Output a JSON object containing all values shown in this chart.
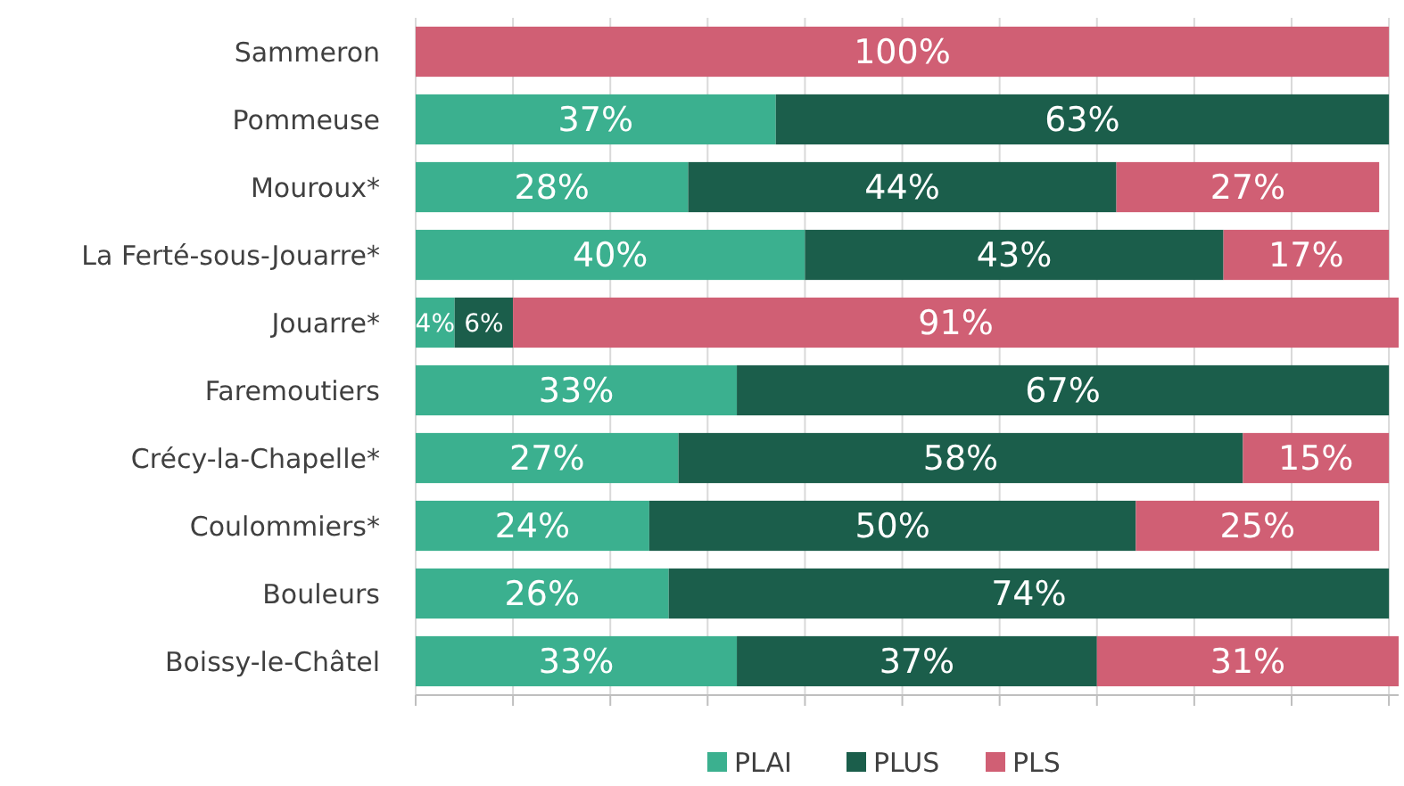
{
  "chart_data": {
    "type": "bar",
    "orientation": "horizontal",
    "stacked": true,
    "categories": [
      "Sammeron",
      "Pommeuse",
      "Mouroux*",
      "La Ferté-sous-Jouarre*",
      "Jouarre*",
      "Faremoutiers",
      "Crécy-la-Chapelle*",
      "Coulommiers*",
      "Bouleurs",
      "Boissy-le-Châtel"
    ],
    "series": [
      {
        "name": "PLAI",
        "color": "#3bb08f",
        "values": [
          null,
          37,
          28,
          40,
          4,
          33,
          27,
          24,
          26,
          33
        ],
        "value_labels": [
          null,
          "37%",
          "28%",
          "40%",
          "4%",
          "33%",
          "27%",
          "24%",
          "26%",
          "33%"
        ]
      },
      {
        "name": "PLUS",
        "color": "#1b5e4b",
        "values": [
          null,
          63,
          44,
          43,
          6,
          67,
          58,
          50,
          74,
          37
        ],
        "value_labels": [
          null,
          "63%",
          "44%",
          "43%",
          "6%",
          "67%",
          "58%",
          "50%",
          "74%",
          "37%"
        ]
      },
      {
        "name": "PLS",
        "color": "#d05f74",
        "values": [
          100,
          null,
          27,
          17,
          91,
          null,
          15,
          25,
          null,
          31
        ],
        "value_labels": [
          "100%",
          null,
          "27%",
          "17%",
          "91%",
          null,
          "15%",
          "25%",
          null,
          "31%"
        ]
      }
    ],
    "xlim": [
      0,
      101
    ],
    "xticks": [
      {
        "value": 0,
        "label": null
      },
      {
        "value": 10,
        "label": null
      },
      {
        "value": 20,
        "label": null
      },
      {
        "value": 30,
        "label": null
      },
      {
        "value": 40,
        "label": null
      },
      {
        "value": 50,
        "label": null
      },
      {
        "value": 60,
        "label": null
      },
      {
        "value": 70,
        "label": null
      },
      {
        "value": 80,
        "label": null
      },
      {
        "value": 90,
        "label": null
      },
      {
        "value": 100,
        "label": null
      }
    ],
    "tick_labels": "y",
    "grid": "x",
    "legend": "bottom"
  }
}
